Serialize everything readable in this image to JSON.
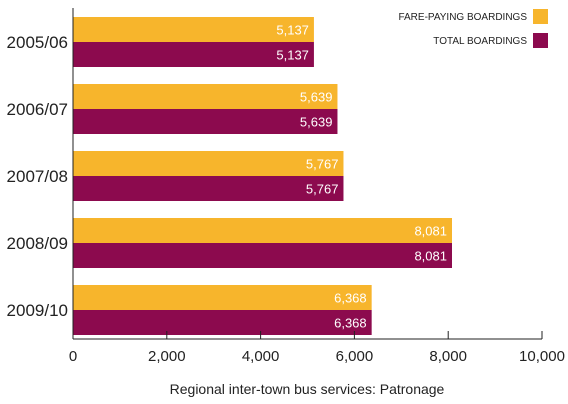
{
  "chart_data": {
    "type": "bar",
    "orientation": "horizontal",
    "categories": [
      "2005/06",
      "2006/07",
      "2007/08",
      "2008/09",
      "2009/10"
    ],
    "series": [
      {
        "name": "FARE-PAYING BOARDINGS",
        "color": "#f7b52c",
        "values": [
          5137,
          5639,
          5767,
          8081,
          6368
        ],
        "labels": [
          "5,137",
          "5,639",
          "5,767",
          "8,081",
          "6,368"
        ]
      },
      {
        "name": "TOTAL BOARDINGS",
        "color": "#8c0a4e",
        "values": [
          5137,
          5639,
          5767,
          8081,
          6368
        ],
        "labels": [
          "5,137",
          "5,639",
          "5,767",
          "8,081",
          "6,368"
        ]
      }
    ],
    "xlabel": "Regional inter-town bus services: Patronage",
    "xlim": [
      0,
      10000
    ],
    "xticks": [
      0,
      2000,
      4000,
      6000,
      8000,
      10000
    ],
    "xtick_labels": [
      "0",
      "2,000",
      "4,000",
      "6,000",
      "8,000",
      "10,000"
    ],
    "grid": false,
    "legend_position": "top-right"
  }
}
